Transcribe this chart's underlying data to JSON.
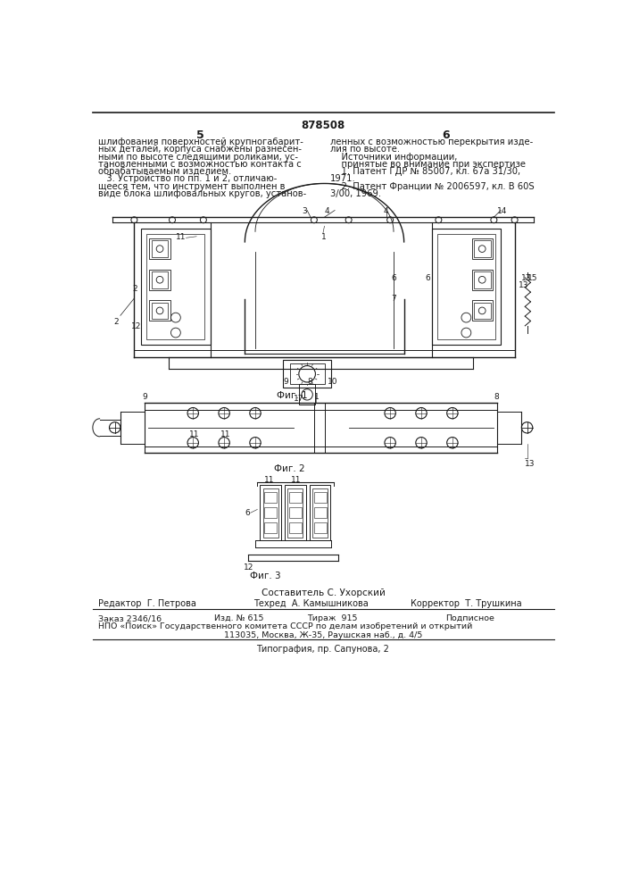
{
  "patent_number": "878508",
  "page_left": "5",
  "page_right": "6",
  "bg_color": "#ffffff",
  "text_color": "#1a1a1a",
  "col_left_text": [
    "шлифования поверхностей крупногабарит-",
    "ных деталей, корпуса снабжены разнесен-",
    "ными по высоте следящими роликами, ус-",
    "тановленными с возможностью контакта с",
    "обрабатываемым изделием.",
    "   3. Устройство по пп. 1 и 2, отличаю-",
    "щееся тем, что инструмент выполнен в",
    "виде блока шлифовальных кругов, установ-"
  ],
  "col_right_text": [
    "ленных с возможностью перекрытия изде-",
    "лия по высоте.",
    "    Источники информации,",
    "    принятые во внимание при экспертизе",
    "    1. Патент ГДР № 85007, кл. 67а 31/30,",
    "1971.",
    "    2. Патент Франции № 2006597, кл. В 60S",
    "3/00, 1969."
  ],
  "fig1_caption": "Фиг. 1",
  "fig2_caption": "Фиг. 2",
  "fig3_caption": "Фиг. 3",
  "footer_composer": "Составитель С. Ухорский",
  "footer_editor": "Редактор  Г. Петрова",
  "footer_tech": "Техред  А. Камышникова",
  "footer_corrector": "Корректор  Т. Трушкина",
  "footer_order": "Заказ 2346/16",
  "footer_izd": "Изд. № 615",
  "footer_tirazh": "Тираж  915",
  "footer_podpisnoe": "Подписное",
  "footer_npo": "НПО «Поиск» Государственного комитета СССР по делам изобретений и открытий",
  "footer_address": "113035, Москва, Ж-35, Раушская наб., д. 4/5",
  "footer_typography": "Типография, пр. Сапунова, 2"
}
